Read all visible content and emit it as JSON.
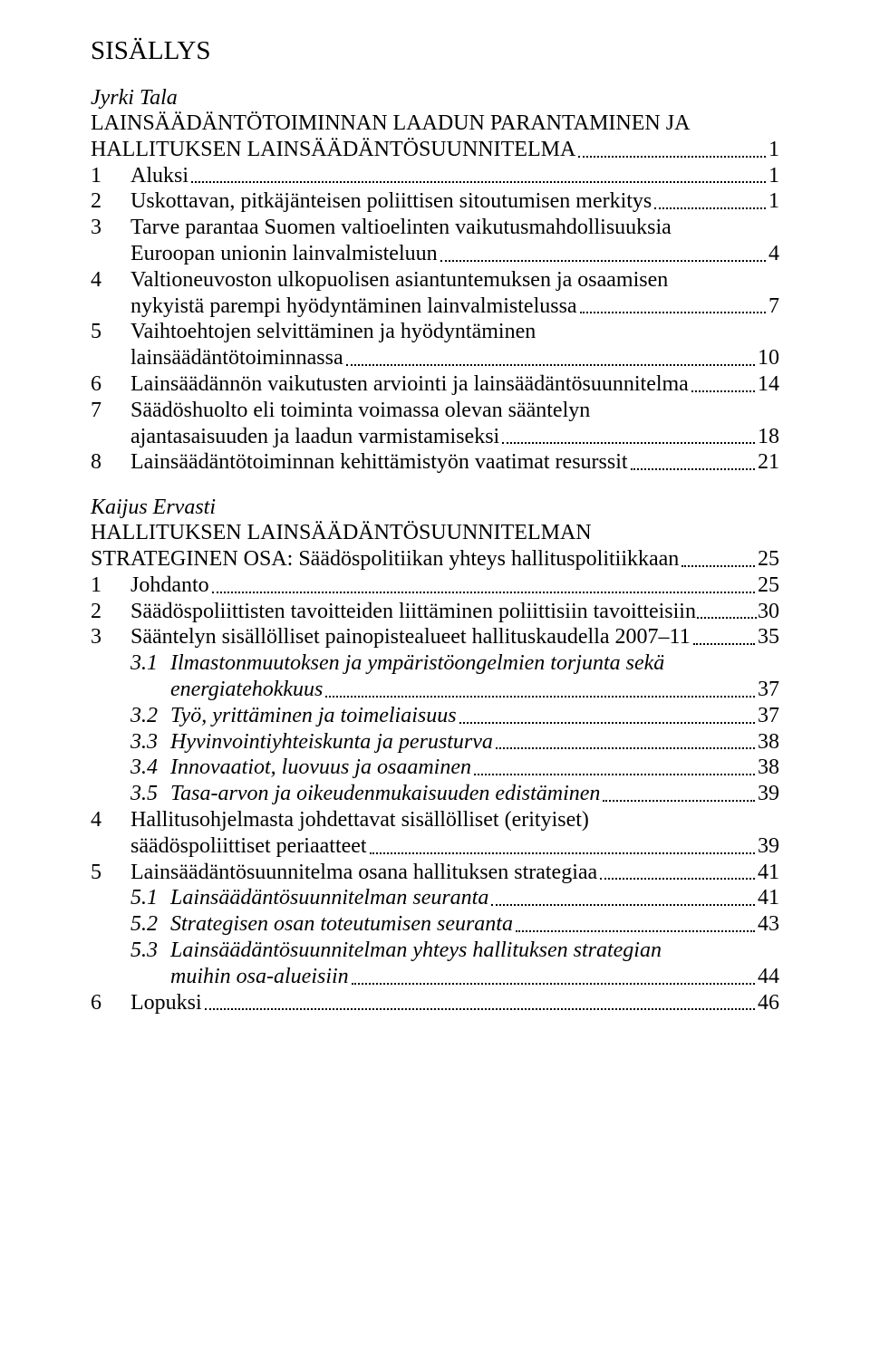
{
  "title": "SISÄLLYS",
  "sections": [
    {
      "author": "Jyrki Tala",
      "heading_lines": [
        "LAINSÄÄDÄNTÖTOIMINNAN LAADUN PARANTAMINEN JA",
        "HALLITUKSEN LAINSÄÄDÄNTÖSUUNNITELMA"
      ],
      "heading_page": "1",
      "entries": [
        {
          "num": "1",
          "lines": [
            "Aluksi"
          ],
          "page": "1"
        },
        {
          "num": "2",
          "lines": [
            "Uskottavan, pitkäjänteisen poliittisen sitoutumisen merkitys"
          ],
          "page": "1"
        },
        {
          "num": "3",
          "lines": [
            "Tarve parantaa Suomen valtioelinten vaikutusmahdollisuuksia",
            "Euroopan unionin lainvalmisteluun"
          ],
          "page": "4"
        },
        {
          "num": "4",
          "lines": [
            "Valtioneuvoston ulkopuolisen asiantuntemuksen ja osaamisen",
            "nykyistä parempi hyödyntäminen lainvalmistelussa"
          ],
          "page": "7"
        },
        {
          "num": "5",
          "lines": [
            "Vaihtoehtojen selvittäminen ja hyödyntäminen",
            "lainsäädäntötoiminnassa"
          ],
          "page": "10"
        },
        {
          "num": "6",
          "lines": [
            "Lainsäädännön vaikutusten arviointi ja lainsäädäntösuunnitelma"
          ],
          "page": "14"
        },
        {
          "num": "7",
          "lines": [
            "Säädöshuolto eli toiminta voimassa olevan sääntelyn",
            "ajantasaisuuden ja laadun varmistamiseksi"
          ],
          "page": "18"
        },
        {
          "num": "8",
          "lines": [
            "Lainsäädäntötoiminnan kehittämistyön vaatimat resurssit"
          ],
          "page": "21"
        }
      ]
    },
    {
      "author": "Kaijus Ervasti",
      "heading_lines": [
        "HALLITUKSEN LAINSÄÄDÄNTÖSUUNNITELMAN",
        "STRATEGINEN OSA: Säädöspolitiikan yhteys hallituspolitiikkaan"
      ],
      "heading_page": "25",
      "entries": [
        {
          "num": "1",
          "lines": [
            "Johdanto"
          ],
          "page": "25"
        },
        {
          "num": "2",
          "lines": [
            "Säädöspoliittisten tavoitteiden liittäminen poliittisiin tavoitteisiin"
          ],
          "page": "30",
          "tight": true
        },
        {
          "num": "3",
          "lines": [
            "Sääntelyn sisällölliset painopistealueet hallituskaudella 2007–11"
          ],
          "page": "35"
        },
        {
          "sub": "3.1",
          "italic": true,
          "lines": [
            "Ilmastonmuutoksen ja ympäristöongelmien torjunta sekä",
            "energiatehokkuus"
          ],
          "page": "37"
        },
        {
          "sub": "3.2",
          "italic": true,
          "lines": [
            "Työ, yrittäminen ja toimeliaisuus"
          ],
          "page": "37"
        },
        {
          "sub": "3.3",
          "italic": true,
          "lines": [
            "Hyvinvointiyhteiskunta ja perusturva"
          ],
          "page": "38"
        },
        {
          "sub": "3.4",
          "italic": true,
          "lines": [
            "Innovaatiot, luovuus ja osaaminen"
          ],
          "page": "38"
        },
        {
          "sub": "3.5",
          "italic": true,
          "lines": [
            "Tasa-arvon ja oikeudenmukaisuuden edistäminen"
          ],
          "page": "39"
        },
        {
          "num": "4",
          "lines": [
            "Hallitusohjelmasta johdettavat sisällölliset (erityiset)",
            "säädöspoliittiset periaatteet"
          ],
          "page": "39"
        },
        {
          "num": "5",
          "lines": [
            "Lainsäädäntösuunnitelma osana hallituksen strategiaa"
          ],
          "page": "41"
        },
        {
          "sub": "5.1",
          "italic": true,
          "lines": [
            "Lainsäädäntösuunnitelman seuranta"
          ],
          "page": "41"
        },
        {
          "sub": "5.2",
          "italic": true,
          "lines": [
            "Strategisen osan toteutumisen seuranta"
          ],
          "page": "43"
        },
        {
          "sub": "5.3",
          "italic": true,
          "lines": [
            "Lainsäädäntösuunnitelman yhteys hallituksen strategian",
            "muihin osa-alueisiin"
          ],
          "page": "44"
        },
        {
          "num": "6",
          "lines": [
            "Lopuksi"
          ],
          "page": "46"
        }
      ]
    }
  ]
}
